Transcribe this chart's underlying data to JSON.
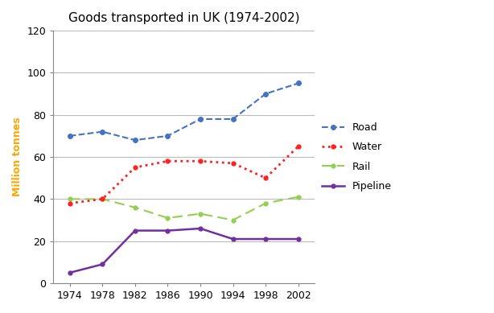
{
  "title": "Goods transported in UK (1974-2002)",
  "ylabel": "Million tonnes",
  "years": [
    1974,
    1978,
    1982,
    1986,
    1990,
    1994,
    1998,
    2002
  ],
  "road": [
    70,
    72,
    68,
    70,
    78,
    78,
    90,
    95
  ],
  "water": [
    38,
    40,
    55,
    58,
    58,
    57,
    50,
    65
  ],
  "rail": [
    40,
    40,
    36,
    31,
    33,
    30,
    38,
    41
  ],
  "pipeline": [
    5,
    9,
    25,
    25,
    26,
    21,
    21,
    21
  ],
  "road_color": "#4472C4",
  "water_color": "#FF2020",
  "rail_color": "#92D050",
  "pipeline_color": "#7030A0",
  "ylim": [
    0,
    120
  ],
  "yticks": [
    0,
    20,
    40,
    60,
    80,
    100,
    120
  ],
  "title_fontsize": 11,
  "label_fontsize": 9,
  "tick_fontsize": 9,
  "legend_labels": [
    "Road",
    "Water",
    "Rail",
    "Pipeline"
  ],
  "background_color": "#ffffff",
  "plot_bg_color": "#ffffff",
  "ylabel_color": "#FFA500",
  "grid_color": "#bbbbbb"
}
